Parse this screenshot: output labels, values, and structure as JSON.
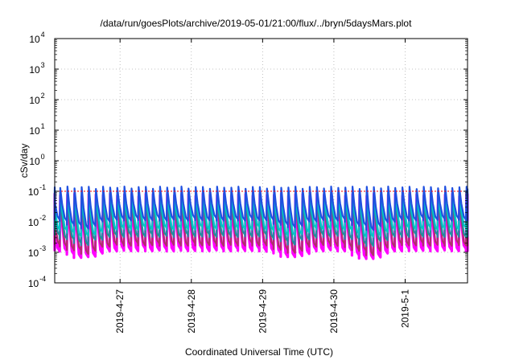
{
  "chart_data": {
    "type": "line",
    "title": "/data/run/goesPlots/archive/2019-05-01/21:00/flux/../bryn/5daysMars.plot",
    "xlabel": "Coordinated Universal Time (UTC)",
    "ylabel": "cSv/day",
    "yscale": "log",
    "ylim": [
      0.0001,
      10000
    ],
    "xlim": [
      "2019-04-26 02:00",
      "2019-05-01 21:00"
    ],
    "grid": true,
    "y_ticks": [
      {
        "base": "10",
        "exp": "-4"
      },
      {
        "base": "10",
        "exp": "-3"
      },
      {
        "base": "10",
        "exp": "-2"
      },
      {
        "base": "10",
        "exp": "-1"
      },
      {
        "base": "10",
        "exp": "0"
      },
      {
        "base": "10",
        "exp": "1"
      },
      {
        "base": "10",
        "exp": "2"
      },
      {
        "base": "10",
        "exp": "3"
      },
      {
        "base": "10",
        "exp": "4"
      }
    ],
    "x_ticks": [
      "2019-4-27",
      "2019-4-28",
      "2019-4-29",
      "2019-4-30",
      "2019-5-1"
    ],
    "reference_line": {
      "y": 0.1,
      "color": "#ff0000",
      "style": "dotted"
    },
    "cycle_hours": 2.4,
    "series": [
      {
        "color": "#ff00ff",
        "peak": 0.075,
        "trough": 0.0012
      },
      {
        "color": "#b0306a",
        "peak": 0.08,
        "trough": 0.0018
      },
      {
        "color": "#1e90a0",
        "peak": 0.09,
        "trough": 0.0035
      },
      {
        "color": "#00c8c8",
        "peak": 0.1,
        "trough": 0.006
      },
      {
        "color": "#2050e0",
        "peak": 0.13,
        "trough": 0.012
      }
    ],
    "daily_dips": [
      {
        "date": "2019-04-26 12:00",
        "trough_factor": 0.5
      },
      {
        "date": "2019-04-29 10:00",
        "trough_factor": 0.55
      },
      {
        "date": "2019-04-30 12:00",
        "trough_factor": 0.45
      }
    ]
  }
}
